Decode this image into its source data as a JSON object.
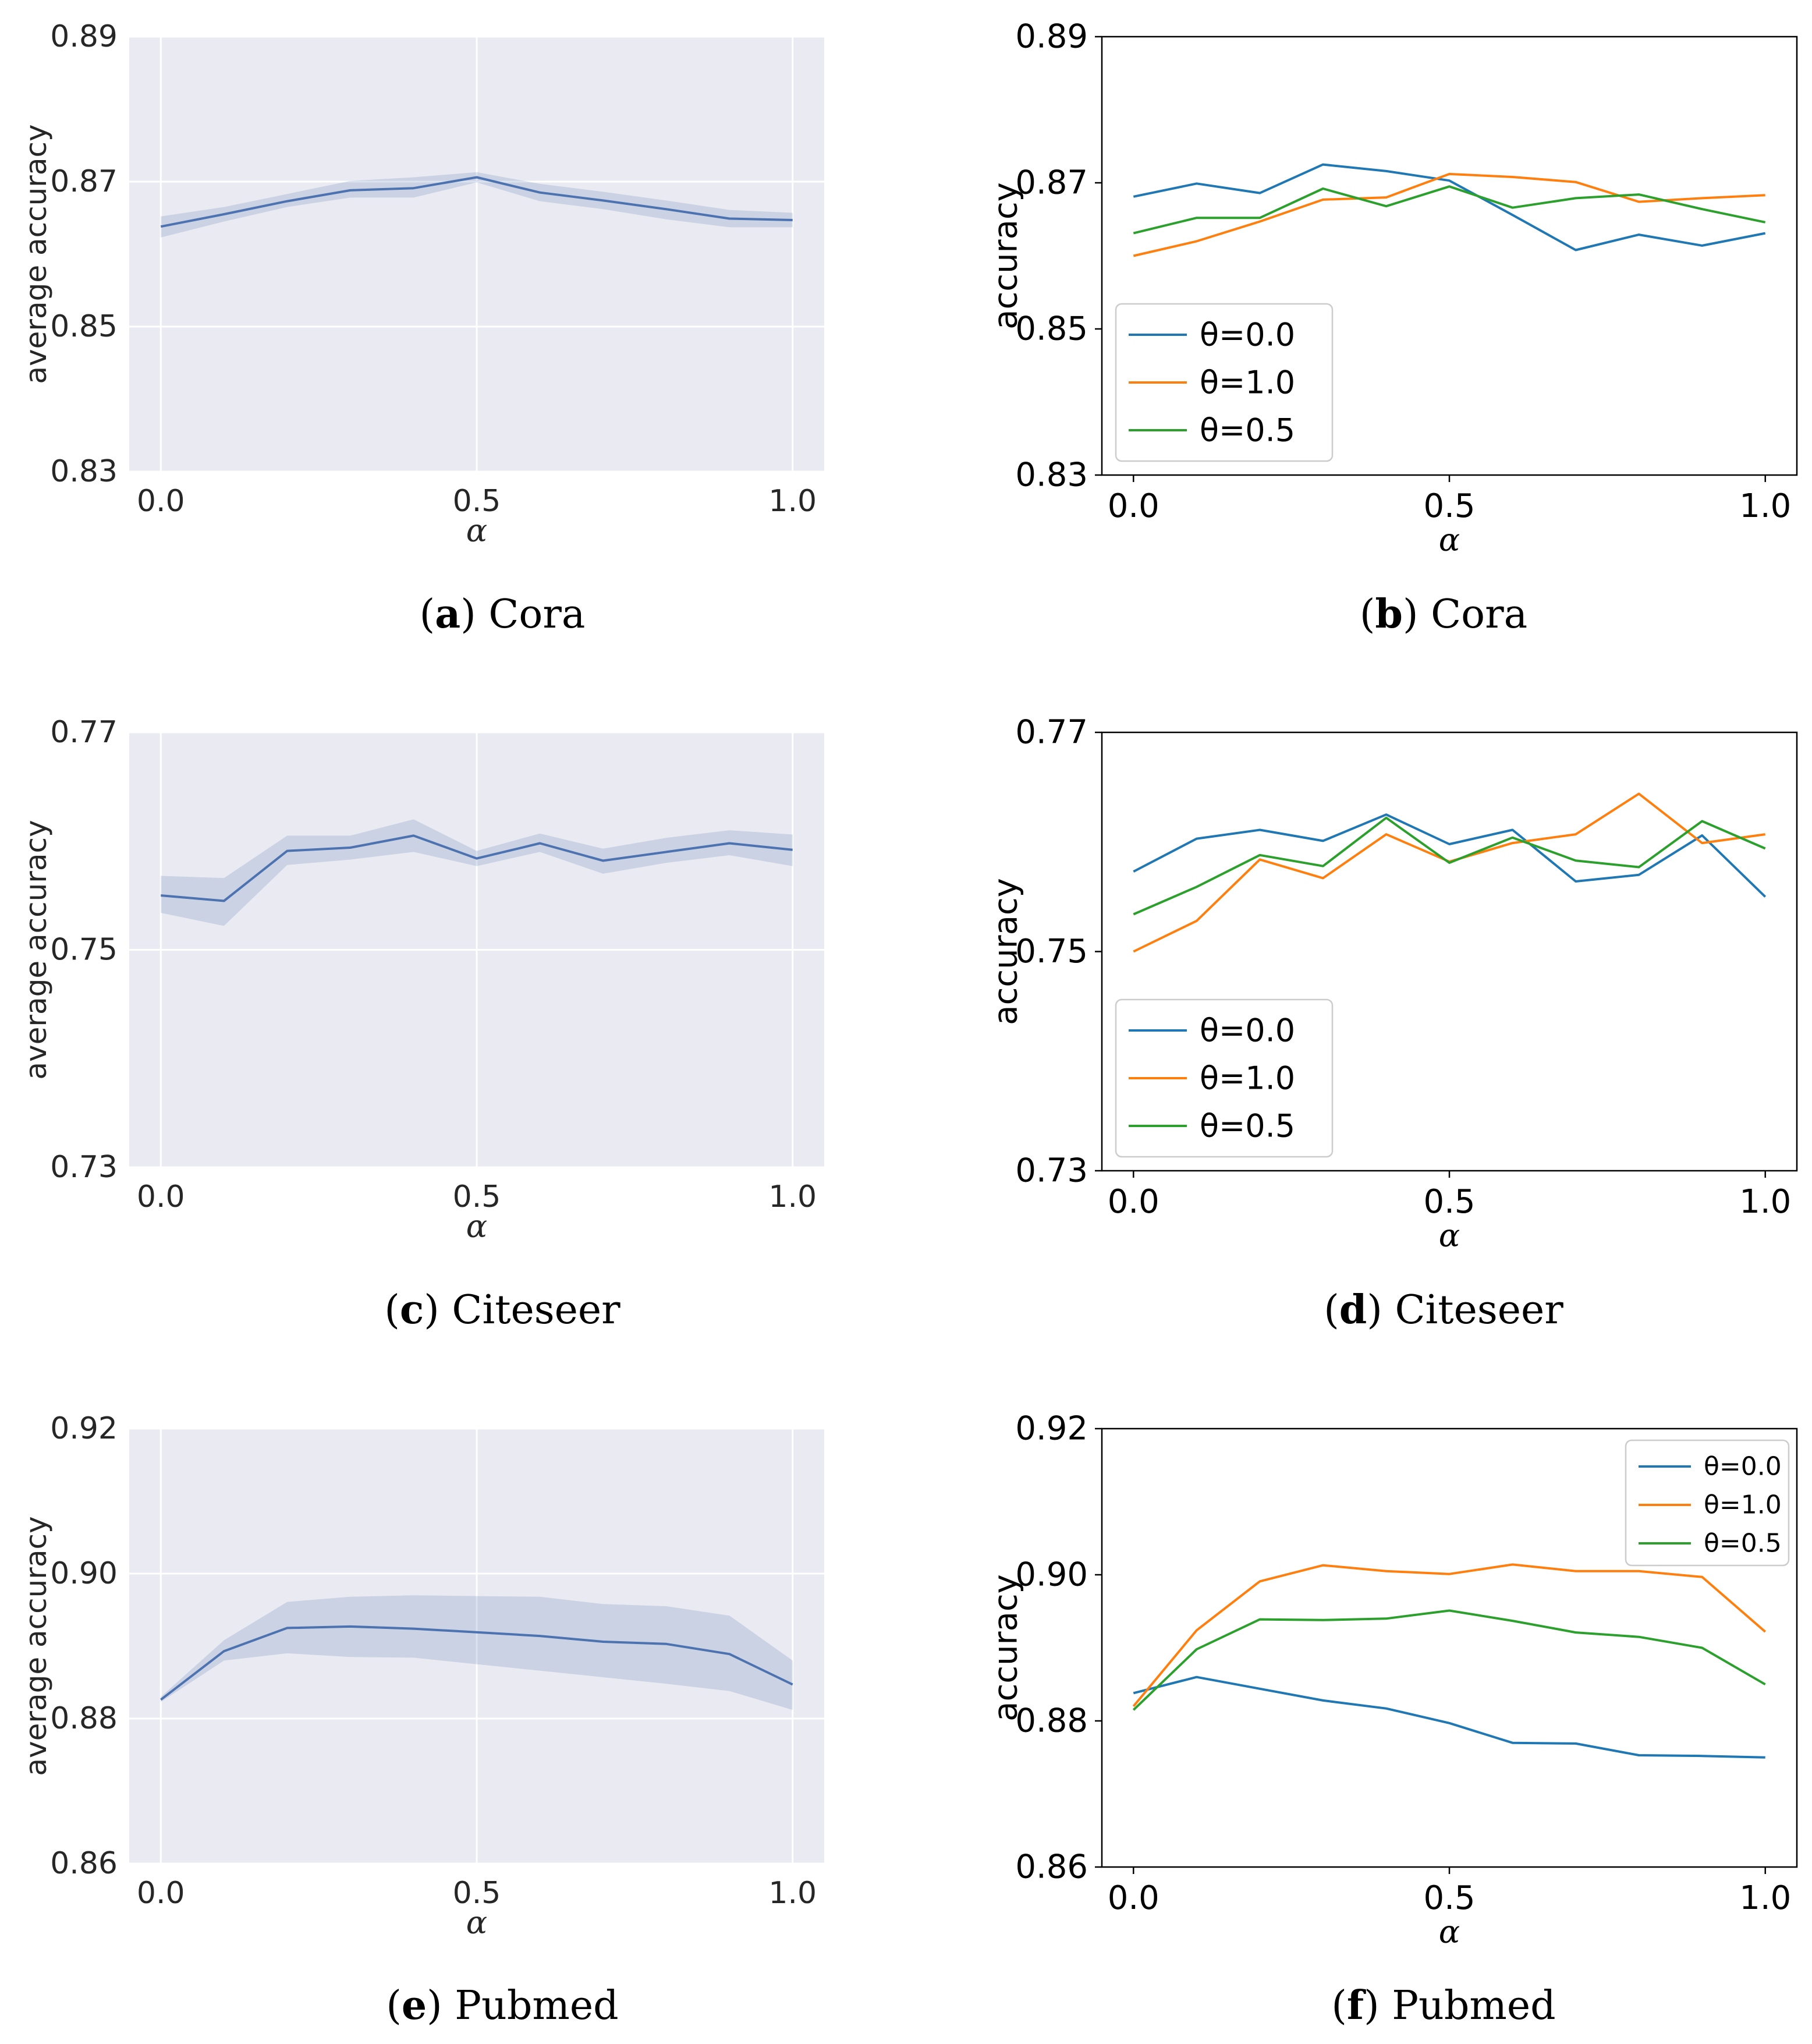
{
  "chart_data": [
    {
      "id": "a",
      "type": "line",
      "style": "seaborn-band",
      "caption_letter": "a",
      "caption_name": "Cora",
      "xlabel": "α",
      "ylabel": "average accuracy",
      "xlim": [
        -0.05,
        1.05
      ],
      "ylim": [
        0.83,
        0.89
      ],
      "xticks": [
        0.0,
        0.5,
        1.0
      ],
      "xtick_labels": [
        "0.0",
        "0.5",
        "1.0"
      ],
      "yticks": [
        0.83,
        0.85,
        0.87,
        0.89
      ],
      "ytick_labels": [
        "0.83",
        "0.85",
        "0.87",
        "0.89"
      ],
      "x": [
        0.0,
        0.1,
        0.2,
        0.3,
        0.4,
        0.5,
        0.6,
        0.7,
        0.8,
        0.9,
        1.0
      ],
      "series": [
        {
          "name": "mean",
          "color": "#4c72b0",
          "values": [
            0.8638,
            0.8655,
            0.8673,
            0.8688,
            0.8691,
            0.8706,
            0.8685,
            0.8674,
            0.8662,
            0.8649,
            0.8647
          ],
          "lower": [
            0.8623,
            0.8645,
            0.8665,
            0.8678,
            0.8678,
            0.8699,
            0.8673,
            0.8662,
            0.8648,
            0.8637,
            0.8637
          ],
          "upper": [
            0.8652,
            0.8665,
            0.8683,
            0.8701,
            0.8706,
            0.8713,
            0.8697,
            0.8686,
            0.8674,
            0.8661,
            0.8657
          ]
        }
      ]
    },
    {
      "id": "b",
      "type": "line",
      "style": "plain",
      "caption_letter": "b",
      "caption_name": "Cora",
      "xlabel": "α",
      "ylabel": "accuracy",
      "xlim": [
        -0.05,
        1.05
      ],
      "ylim": [
        0.83,
        0.89
      ],
      "xticks": [
        0.0,
        0.5,
        1.0
      ],
      "xtick_labels": [
        "0.0",
        "0.5",
        "1.0"
      ],
      "yticks": [
        0.83,
        0.85,
        0.87,
        0.89
      ],
      "ytick_labels": [
        "0.83",
        "0.85",
        "0.87",
        "0.89"
      ],
      "legend": "center-left",
      "x": [
        0.0,
        0.1,
        0.2,
        0.3,
        0.4,
        0.5,
        0.6,
        0.7,
        0.8,
        0.9,
        1.0
      ],
      "series": [
        {
          "name": "θ=0.0",
          "color": "#1f77b4",
          "values": [
            0.8681,
            0.8699,
            0.8686,
            0.8725,
            0.8716,
            0.8703,
            0.8656,
            0.8608,
            0.8629,
            0.8614,
            0.8631
          ]
        },
        {
          "name": "θ=1.0",
          "color": "#ff7f0e",
          "values": [
            0.86,
            0.862,
            0.8647,
            0.8677,
            0.868,
            0.8712,
            0.8708,
            0.8701,
            0.8674,
            0.8679,
            0.8683
          ]
        },
        {
          "name": "θ=0.5",
          "color": "#2ca02c",
          "values": [
            0.8631,
            0.8652,
            0.8652,
            0.8692,
            0.8668,
            0.8695,
            0.8666,
            0.8679,
            0.8684,
            0.8664,
            0.8646
          ]
        }
      ]
    },
    {
      "id": "c",
      "type": "line",
      "style": "seaborn-band",
      "caption_letter": "c",
      "caption_name": "Citeseer",
      "xlabel": "α",
      "ylabel": "average accuracy",
      "xlim": [
        -0.05,
        1.05
      ],
      "ylim": [
        0.73,
        0.77
      ],
      "xticks": [
        0.0,
        0.5,
        1.0
      ],
      "xtick_labels": [
        "0.0",
        "0.5",
        "1.0"
      ],
      "yticks": [
        0.73,
        0.75,
        0.77
      ],
      "ytick_labels": [
        "0.73",
        "0.75",
        "0.77"
      ],
      "x": [
        0.0,
        0.1,
        0.2,
        0.3,
        0.4,
        0.5,
        0.6,
        0.7,
        0.8,
        0.9,
        1.0
      ],
      "series": [
        {
          "name": "mean",
          "color": "#4c72b0",
          "values": [
            0.755,
            0.7545,
            0.7591,
            0.7594,
            0.7605,
            0.7584,
            0.7598,
            0.7582,
            0.759,
            0.7598,
            0.7592
          ],
          "lower": [
            0.7534,
            0.7522,
            0.7578,
            0.7583,
            0.759,
            0.7577,
            0.759,
            0.757,
            0.758,
            0.7587,
            0.7577
          ],
          "upper": [
            0.7568,
            0.7566,
            0.7605,
            0.7605,
            0.762,
            0.7591,
            0.7607,
            0.7593,
            0.7603,
            0.761,
            0.7606
          ]
        }
      ]
    },
    {
      "id": "d",
      "type": "line",
      "style": "plain",
      "caption_letter": "d",
      "caption_name": "Citeseer",
      "xlabel": "α",
      "ylabel": "accuracy",
      "xlim": [
        -0.05,
        1.05
      ],
      "ylim": [
        0.73,
        0.77
      ],
      "xticks": [
        0.0,
        0.5,
        1.0
      ],
      "xtick_labels": [
        "0.0",
        "0.5",
        "1.0"
      ],
      "yticks": [
        0.73,
        0.75,
        0.77
      ],
      "ytick_labels": [
        "0.73",
        "0.75",
        "0.77"
      ],
      "legend": "lower-left",
      "x": [
        0.0,
        0.1,
        0.2,
        0.3,
        0.4,
        0.5,
        0.6,
        0.7,
        0.8,
        0.9,
        1.0
      ],
      "series": [
        {
          "name": "θ=0.0",
          "color": "#1f77b4",
          "values": [
            0.7573,
            0.7603,
            0.7611,
            0.7601,
            0.7625,
            0.7598,
            0.7611,
            0.7564,
            0.757,
            0.7606,
            0.755
          ]
        },
        {
          "name": "θ=1.0",
          "color": "#ff7f0e",
          "values": [
            0.75,
            0.7528,
            0.7584,
            0.7567,
            0.7607,
            0.7582,
            0.7599,
            0.7607,
            0.7644,
            0.7599,
            0.7607
          ]
        },
        {
          "name": "θ=0.5",
          "color": "#2ca02c",
          "values": [
            0.7534,
            0.7559,
            0.7588,
            0.7578,
            0.7622,
            0.7581,
            0.7604,
            0.7583,
            0.7577,
            0.7619,
            0.7594
          ]
        }
      ]
    },
    {
      "id": "e",
      "type": "line",
      "style": "seaborn-band",
      "caption_letter": "e",
      "caption_name": "Pubmed",
      "xlabel": "α",
      "ylabel": "average accuracy",
      "xlim": [
        -0.05,
        1.05
      ],
      "ylim": [
        0.86,
        0.92
      ],
      "xticks": [
        0.0,
        0.5,
        1.0
      ],
      "xtick_labels": [
        "0.0",
        "0.5",
        "1.0"
      ],
      "yticks": [
        0.86,
        0.88,
        0.9,
        0.92
      ],
      "ytick_labels": [
        "0.86",
        "0.88",
        "0.90",
        "0.92"
      ],
      "x": [
        0.0,
        0.1,
        0.2,
        0.3,
        0.4,
        0.5,
        0.6,
        0.7,
        0.8,
        0.9,
        1.0
      ],
      "series": [
        {
          "name": "mean",
          "color": "#4c72b0",
          "values": [
            0.8826,
            0.8893,
            0.8925,
            0.8927,
            0.8924,
            0.8919,
            0.8914,
            0.8906,
            0.8903,
            0.8889,
            0.8847
          ],
          "lower": [
            0.8823,
            0.888,
            0.889,
            0.8885,
            0.8884,
            0.8875,
            0.8866,
            0.8857,
            0.8848,
            0.8838,
            0.8812
          ],
          "upper": [
            0.883,
            0.8908,
            0.8961,
            0.8968,
            0.897,
            0.8969,
            0.8968,
            0.8958,
            0.8955,
            0.8942,
            0.888
          ]
        }
      ]
    },
    {
      "id": "f",
      "type": "line",
      "style": "plain",
      "caption_letter": "f",
      "caption_name": "Pubmed",
      "xlabel": "α",
      "ylabel": "accuracy",
      "xlim": [
        -0.05,
        1.05
      ],
      "ylim": [
        0.86,
        0.92
      ],
      "xticks": [
        0.0,
        0.5,
        1.0
      ],
      "xtick_labels": [
        "0.0",
        "0.5",
        "1.0"
      ],
      "yticks": [
        0.86,
        0.88,
        0.9,
        0.92
      ],
      "ytick_labels": [
        "0.86",
        "0.88",
        "0.90",
        "0.92"
      ],
      "legend": "top-right",
      "x": [
        0.0,
        0.1,
        0.2,
        0.3,
        0.4,
        0.5,
        0.6,
        0.7,
        0.8,
        0.9,
        1.0
      ],
      "series": [
        {
          "name": "θ=0.0",
          "color": "#1f77b4",
          "values": [
            0.8838,
            0.886,
            0.8844,
            0.8828,
            0.8817,
            0.8797,
            0.877,
            0.8769,
            0.8753,
            0.8752,
            0.875
          ]
        },
        {
          "name": "θ=1.0",
          "color": "#ff7f0e",
          "values": [
            0.882,
            0.8924,
            0.8991,
            0.9013,
            0.9005,
            0.9001,
            0.9014,
            0.9005,
            0.9005,
            0.8997,
            0.8922
          ]
        },
        {
          "name": "θ=0.5",
          "color": "#2ca02c",
          "values": [
            0.8815,
            0.8898,
            0.8939,
            0.8938,
            0.894,
            0.8951,
            0.8937,
            0.8921,
            0.8915,
            0.89,
            0.885
          ]
        }
      ]
    }
  ]
}
